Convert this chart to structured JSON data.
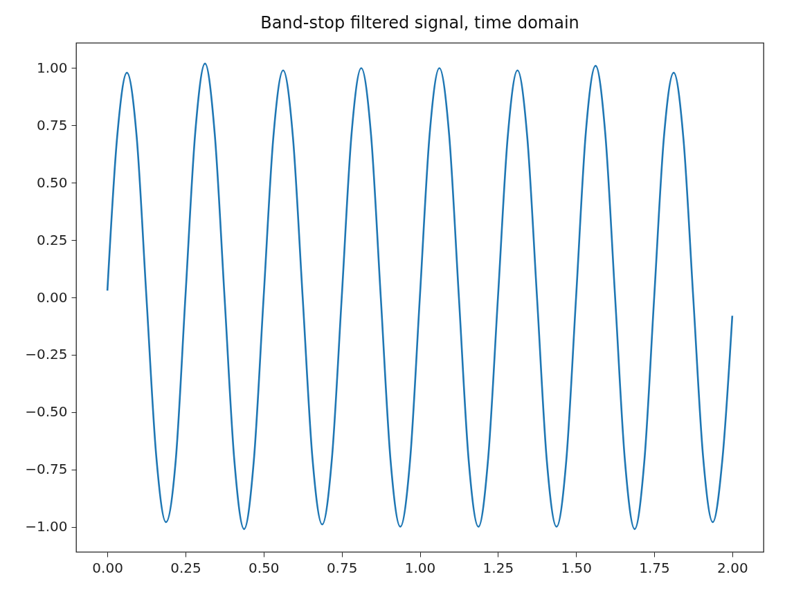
{
  "chart_data": {
    "type": "line",
    "title": "Band-stop filtered signal, time domain",
    "x": [
      0,
      0.03125,
      0.0625,
      0.09375,
      0.125,
      0.15625,
      0.1875,
      0.21875,
      0.25,
      0.28125,
      0.3125,
      0.34375,
      0.375,
      0.40625,
      0.4375,
      0.46875,
      0.5,
      0.53125,
      0.5625,
      0.59375,
      0.625,
      0.65625,
      0.6875,
      0.71875,
      0.75,
      0.78125,
      0.8125,
      0.84375,
      0.875,
      0.90625,
      0.9375,
      0.96875,
      1.0,
      1.03125,
      1.0625,
      1.09375,
      1.125,
      1.15625,
      1.1875,
      1.21875,
      1.25,
      1.28125,
      1.3125,
      1.34375,
      1.375,
      1.40625,
      1.4375,
      1.46875,
      1.5,
      1.53125,
      1.5625,
      1.59375,
      1.625,
      1.65625,
      1.6875,
      1.71875,
      1.75,
      1.78125,
      1.8125,
      1.84375,
      1.875,
      1.90625,
      1.9375,
      1.96875,
      2.0
    ],
    "series": [
      {
        "color": "#1f77b4",
        "values": [
          0.03,
          0.7,
          0.98,
          0.7,
          0.0,
          -0.69,
          -0.98,
          -0.71,
          0.01,
          0.72,
          1.02,
          0.71,
          0.0,
          -0.71,
          -1.01,
          -0.71,
          0.0,
          0.7,
          0.99,
          0.7,
          0.0,
          -0.7,
          -0.99,
          -0.7,
          0.0,
          0.71,
          1.0,
          0.71,
          0.0,
          -0.71,
          -1.0,
          -0.71,
          0.0,
          0.71,
          1.0,
          0.71,
          0.0,
          -0.71,
          -1.0,
          -0.7,
          0.0,
          0.7,
          0.99,
          0.7,
          0.0,
          -0.71,
          -1.0,
          -0.71,
          0.0,
          0.72,
          1.01,
          0.71,
          0.0,
          -0.71,
          -1.01,
          -0.71,
          0.0,
          0.7,
          0.98,
          0.69,
          0.0,
          -0.69,
          -0.98,
          -0.7,
          -0.08
        ]
      }
    ],
    "xlim": [
      -0.1,
      2.1
    ],
    "ylim": [
      -1.11,
      1.11
    ],
    "xticks": [
      {
        "value": 0,
        "label": "0.00"
      },
      {
        "value": 0.25,
        "label": "0.25"
      },
      {
        "value": 0.5,
        "label": "0.50"
      },
      {
        "value": 0.75,
        "label": "0.75"
      },
      {
        "value": 1,
        "label": "1.00"
      },
      {
        "value": 1.25,
        "label": "1.25"
      },
      {
        "value": 1.5,
        "label": "1.50"
      },
      {
        "value": 1.75,
        "label": "1.75"
      },
      {
        "value": 2,
        "label": "2.00"
      }
    ],
    "yticks": [
      {
        "value": -1,
        "label": "−1.00"
      },
      {
        "value": -0.75,
        "label": "−0.75"
      },
      {
        "value": -0.5,
        "label": "−0.50"
      },
      {
        "value": -0.25,
        "label": "−0.25"
      },
      {
        "value": 0,
        "label": "0.00"
      },
      {
        "value": 0.25,
        "label": "0.25"
      },
      {
        "value": 0.5,
        "label": "0.50"
      },
      {
        "value": 0.75,
        "label": "0.75"
      },
      {
        "value": 1,
        "label": "1.00"
      }
    ],
    "grid": false
  }
}
